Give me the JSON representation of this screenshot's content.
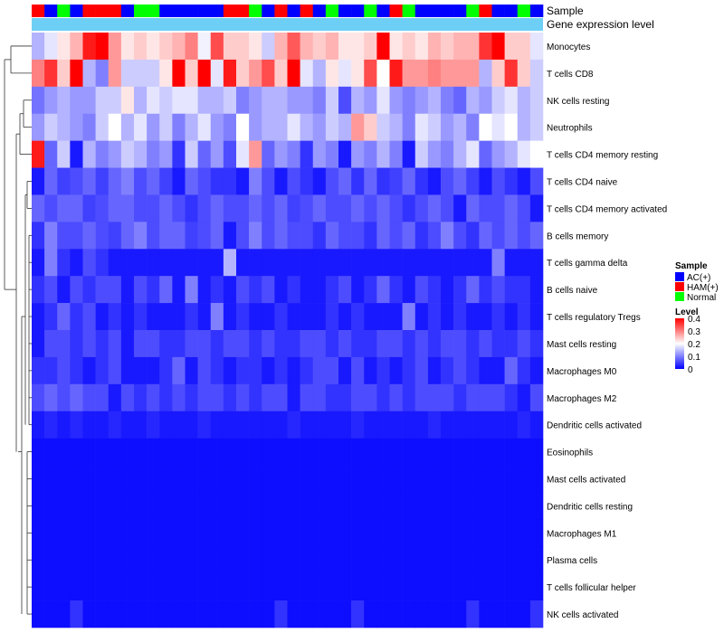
{
  "chart_data": {
    "type": "heatmap",
    "title": "",
    "annotation_tracks": [
      "Sample",
      "Gene expression level"
    ],
    "sample_annotation": [
      "HAM(+)",
      "AC(+)",
      "Normal",
      "AC(+)",
      "HAM(+)",
      "HAM(+)",
      "HAM(+)",
      "AC(+)",
      "Normal",
      "Normal",
      "AC(+)",
      "AC(+)",
      "AC(+)",
      "AC(+)",
      "AC(+)",
      "HAM(+)",
      "HAM(+)",
      "Normal",
      "AC(+)",
      "HAM(+)",
      "AC(+)",
      "HAM(+)",
      "AC(+)",
      "Normal",
      "AC(+)",
      "AC(+)",
      "Normal",
      "AC(+)",
      "HAM(+)",
      "Normal",
      "AC(+)",
      "AC(+)",
      "AC(+)",
      "AC(+)",
      "Normal",
      "HAM(+)",
      "AC(+)",
      "AC(+)",
      "Normal",
      "AC(+)"
    ],
    "rows": [
      "Monocytes",
      "T cells CD8",
      "NK cells resting",
      "Neutrophils",
      "T cells CD4 memory resting",
      "T cells CD4 naive",
      "T cells CD4 memory activated",
      "B cells memory",
      "T cells gamma delta",
      "B cells naive",
      "T cells regulatory  Tregs",
      "Mast cells resting",
      "Macrophages M0",
      "Macrophages M2",
      "Dendritic cells activated",
      "Eosinophils",
      "Mast cells activated",
      "Dendritic cells resting",
      "Macrophages M1",
      "Plasma cells",
      "T cells follicular helper",
      "NK cells activated"
    ],
    "values": [
      [
        0.14,
        0.18,
        0.22,
        0.26,
        0.38,
        0.4,
        0.28,
        0.22,
        0.24,
        0.22,
        0.24,
        0.26,
        0.3,
        0.19,
        0.34,
        0.24,
        0.24,
        0.22,
        0.16,
        0.26,
        0.33,
        0.26,
        0.24,
        0.26,
        0.22,
        0.22,
        0.24,
        0.4,
        0.22,
        0.24,
        0.22,
        0.26,
        0.24,
        0.26,
        0.26,
        0.36,
        0.4,
        0.24,
        0.24,
        0.18
      ],
      [
        0.3,
        0.36,
        0.24,
        0.4,
        0.14,
        0.1,
        0.28,
        0.16,
        0.16,
        0.16,
        0.22,
        0.4,
        0.24,
        0.4,
        0.18,
        0.38,
        0.24,
        0.28,
        0.34,
        0.24,
        0.4,
        0.18,
        0.14,
        0.22,
        0.18,
        0.22,
        0.34,
        0.2,
        0.38,
        0.28,
        0.28,
        0.3,
        0.28,
        0.28,
        0.28,
        0.14,
        0.24,
        0.36,
        0.24,
        0.16
      ],
      [
        0.09,
        0.12,
        0.14,
        0.12,
        0.12,
        0.16,
        0.16,
        0.22,
        0.14,
        0.18,
        0.16,
        0.18,
        0.18,
        0.14,
        0.14,
        0.16,
        0.1,
        0.12,
        0.14,
        0.14,
        0.12,
        0.12,
        0.1,
        0.16,
        0.06,
        0.14,
        0.12,
        0.18,
        0.12,
        0.1,
        0.12,
        0.14,
        0.1,
        0.08,
        0.14,
        0.12,
        0.16,
        0.18,
        0.14,
        0.16
      ],
      [
        0.12,
        0.16,
        0.14,
        0.12,
        0.1,
        0.16,
        0.2,
        0.14,
        0.18,
        0.12,
        0.16,
        0.1,
        0.14,
        0.18,
        0.12,
        0.1,
        0.2,
        0.12,
        0.14,
        0.14,
        0.18,
        0.14,
        0.12,
        0.16,
        0.14,
        0.28,
        0.24,
        0.16,
        0.14,
        0.1,
        0.18,
        0.16,
        0.12,
        0.14,
        0.1,
        0.2,
        0.18,
        0.2,
        0.14,
        0.16
      ],
      [
        0.38,
        0.08,
        0.16,
        0.02,
        0.14,
        0.1,
        0.12,
        0.16,
        0.14,
        0.1,
        0.12,
        0.04,
        0.16,
        0.08,
        0.12,
        0.06,
        0.18,
        0.28,
        0.08,
        0.12,
        0.1,
        0.04,
        0.12,
        0.1,
        0.02,
        0.12,
        0.1,
        0.14,
        0.1,
        0.02,
        0.16,
        0.12,
        0.1,
        0.14,
        0.18,
        0.08,
        0.12,
        0.14,
        0.18,
        0.2
      ],
      [
        0.02,
        0.08,
        0.05,
        0.06,
        0.08,
        0.05,
        0.08,
        0.1,
        0.06,
        0.08,
        0.05,
        0.02,
        0.08,
        0.06,
        0.04,
        0.04,
        0.02,
        0.1,
        0.06,
        0.02,
        0.06,
        0.04,
        0.02,
        0.06,
        0.08,
        0.04,
        0.08,
        0.04,
        0.05,
        0.08,
        0.04,
        0.02,
        0.06,
        0.08,
        0.05,
        0.02,
        0.06,
        0.04,
        0.02,
        0.06
      ],
      [
        0.08,
        0.06,
        0.08,
        0.08,
        0.05,
        0.06,
        0.08,
        0.08,
        0.06,
        0.06,
        0.08,
        0.06,
        0.04,
        0.06,
        0.08,
        0.06,
        0.06,
        0.08,
        0.06,
        0.08,
        0.05,
        0.06,
        0.08,
        0.06,
        0.06,
        0.08,
        0.06,
        0.08,
        0.06,
        0.04,
        0.06,
        0.08,
        0.06,
        0.02,
        0.08,
        0.06,
        0.06,
        0.08,
        0.06,
        0.02
      ],
      [
        0.04,
        0.1,
        0.06,
        0.06,
        0.08,
        0.06,
        0.05,
        0.08,
        0.1,
        0.06,
        0.08,
        0.08,
        0.05,
        0.06,
        0.08,
        0.02,
        0.06,
        0.1,
        0.06,
        0.08,
        0.06,
        0.06,
        0.04,
        0.08,
        0.06,
        0.06,
        0.04,
        0.08,
        0.06,
        0.08,
        0.04,
        0.06,
        0.1,
        0.06,
        0.04,
        0.08,
        0.06,
        0.08,
        0.06,
        0.08
      ],
      [
        0.02,
        0.1,
        0.04,
        0.02,
        0.06,
        0.04,
        0.02,
        0.02,
        0.02,
        0.02,
        0.02,
        0.02,
        0.02,
        0.02,
        0.02,
        0.14,
        0.02,
        0.02,
        0.02,
        0.02,
        0.02,
        0.02,
        0.02,
        0.02,
        0.02,
        0.02,
        0.02,
        0.02,
        0.02,
        0.02,
        0.02,
        0.02,
        0.02,
        0.02,
        0.02,
        0.02,
        0.1,
        0.02,
        0.02,
        0.02
      ],
      [
        0.04,
        0.06,
        0.02,
        0.06,
        0.04,
        0.06,
        0.06,
        0.02,
        0.06,
        0.04,
        0.08,
        0.02,
        0.1,
        0.02,
        0.04,
        0.02,
        0.06,
        0.04,
        0.06,
        0.02,
        0.04,
        0.02,
        0.02,
        0.04,
        0.06,
        0.02,
        0.04,
        0.08,
        0.04,
        0.02,
        0.06,
        0.04,
        0.02,
        0.04,
        0.08,
        0.04,
        0.06,
        0.04,
        0.04,
        0.02
      ],
      [
        0.02,
        0.04,
        0.08,
        0.04,
        0.06,
        0.02,
        0.04,
        0.02,
        0.04,
        0.02,
        0.02,
        0.02,
        0.04,
        0.02,
        0.1,
        0.02,
        0.04,
        0.02,
        0.02,
        0.04,
        0.02,
        0.02,
        0.02,
        0.04,
        0.02,
        0.04,
        0.02,
        0.02,
        0.02,
        0.1,
        0.02,
        0.04,
        0.02,
        0.04,
        0.02,
        0.02,
        0.04,
        0.02,
        0.04,
        0.02
      ],
      [
        0.02,
        0.06,
        0.06,
        0.04,
        0.06,
        0.04,
        0.06,
        0.02,
        0.06,
        0.06,
        0.04,
        0.04,
        0.06,
        0.06,
        0.04,
        0.06,
        0.06,
        0.04,
        0.06,
        0.04,
        0.04,
        0.06,
        0.06,
        0.04,
        0.06,
        0.04,
        0.04,
        0.06,
        0.06,
        0.04,
        0.06,
        0.04,
        0.06,
        0.06,
        0.04,
        0.06,
        0.04,
        0.04,
        0.06,
        0.04
      ],
      [
        0.04,
        0.04,
        0.06,
        0.04,
        0.02,
        0.04,
        0.06,
        0.02,
        0.02,
        0.02,
        0.04,
        0.08,
        0.02,
        0.06,
        0.04,
        0.02,
        0.04,
        0.04,
        0.02,
        0.04,
        0.02,
        0.04,
        0.06,
        0.06,
        0.02,
        0.06,
        0.02,
        0.04,
        0.02,
        0.04,
        0.06,
        0.02,
        0.04,
        0.06,
        0.04,
        0.02,
        0.02,
        0.08,
        0.04,
        0.02
      ],
      [
        0.06,
        0.08,
        0.06,
        0.08,
        0.06,
        0.06,
        0.02,
        0.06,
        0.04,
        0.06,
        0.04,
        0.06,
        0.04,
        0.06,
        0.06,
        0.04,
        0.06,
        0.04,
        0.06,
        0.06,
        0.02,
        0.06,
        0.06,
        0.04,
        0.04,
        0.06,
        0.06,
        0.04,
        0.06,
        0.04,
        0.06,
        0.06,
        0.06,
        0.04,
        0.06,
        0.06,
        0.06,
        0.04,
        0.02,
        0.06
      ],
      [
        0.02,
        0.03,
        0.02,
        0.03,
        0.02,
        0.02,
        0.03,
        0.02,
        0.02,
        0.03,
        0.02,
        0.02,
        0.02,
        0.03,
        0.02,
        0.02,
        0.02,
        0.02,
        0.02,
        0.02,
        0.03,
        0.02,
        0.02,
        0.02,
        0.02,
        0.03,
        0.02,
        0.02,
        0.02,
        0.02,
        0.02,
        0.03,
        0.02,
        0.02,
        0.02,
        0.02,
        0.02,
        0.02,
        0.03,
        0.02
      ],
      [
        0.01,
        0.01,
        0.01,
        0.01,
        0.01,
        0.01,
        0.01,
        0.01,
        0.01,
        0.01,
        0.01,
        0.01,
        0.01,
        0.01,
        0.01,
        0.01,
        0.01,
        0.01,
        0.01,
        0.01,
        0.01,
        0.01,
        0.01,
        0.01,
        0.01,
        0.01,
        0.01,
        0.01,
        0.01,
        0.01,
        0.01,
        0.01,
        0.01,
        0.01,
        0.01,
        0.01,
        0.01,
        0.01,
        0.01,
        0.01
      ],
      [
        0.01,
        0.01,
        0.01,
        0.01,
        0.01,
        0.01,
        0.01,
        0.01,
        0.01,
        0.01,
        0.01,
        0.01,
        0.01,
        0.01,
        0.01,
        0.01,
        0.01,
        0.01,
        0.01,
        0.01,
        0.01,
        0.01,
        0.01,
        0.01,
        0.01,
        0.01,
        0.01,
        0.01,
        0.01,
        0.01,
        0.01,
        0.01,
        0.01,
        0.01,
        0.01,
        0.01,
        0.01,
        0.01,
        0.01,
        0.01
      ],
      [
        0.01,
        0.01,
        0.01,
        0.01,
        0.01,
        0.01,
        0.01,
        0.01,
        0.01,
        0.01,
        0.01,
        0.01,
        0.01,
        0.01,
        0.01,
        0.01,
        0.01,
        0.01,
        0.01,
        0.01,
        0.01,
        0.01,
        0.01,
        0.01,
        0.01,
        0.01,
        0.01,
        0.01,
        0.01,
        0.01,
        0.01,
        0.01,
        0.01,
        0.01,
        0.01,
        0.01,
        0.01,
        0.01,
        0.01,
        0.01
      ],
      [
        0.01,
        0.01,
        0.01,
        0.01,
        0.01,
        0.01,
        0.01,
        0.01,
        0.01,
        0.01,
        0.01,
        0.01,
        0.01,
        0.01,
        0.01,
        0.01,
        0.01,
        0.01,
        0.01,
        0.01,
        0.01,
        0.01,
        0.01,
        0.01,
        0.01,
        0.01,
        0.01,
        0.01,
        0.01,
        0.01,
        0.01,
        0.01,
        0.01,
        0.01,
        0.01,
        0.01,
        0.01,
        0.01,
        0.01,
        0.01
      ],
      [
        0.01,
        0.01,
        0.01,
        0.01,
        0.01,
        0.01,
        0.01,
        0.01,
        0.01,
        0.01,
        0.01,
        0.01,
        0.01,
        0.01,
        0.01,
        0.01,
        0.01,
        0.01,
        0.01,
        0.01,
        0.01,
        0.01,
        0.01,
        0.01,
        0.01,
        0.01,
        0.01,
        0.01,
        0.01,
        0.01,
        0.01,
        0.01,
        0.01,
        0.01,
        0.01,
        0.01,
        0.01,
        0.01,
        0.01,
        0.01
      ],
      [
        0.01,
        0.01,
        0.01,
        0.01,
        0.01,
        0.01,
        0.01,
        0.01,
        0.01,
        0.01,
        0.01,
        0.01,
        0.01,
        0.01,
        0.01,
        0.01,
        0.01,
        0.01,
        0.01,
        0.01,
        0.01,
        0.01,
        0.01,
        0.01,
        0.01,
        0.01,
        0.01,
        0.01,
        0.01,
        0.01,
        0.01,
        0.01,
        0.01,
        0.01,
        0.01,
        0.01,
        0.01,
        0.01,
        0.01,
        0.01
      ],
      [
        0.01,
        0.01,
        0.01,
        0.04,
        0.01,
        0.01,
        0.01,
        0.01,
        0.01,
        0.01,
        0.01,
        0.01,
        0.01,
        0.01,
        0.01,
        0.01,
        0.01,
        0.01,
        0.01,
        0.04,
        0.01,
        0.01,
        0.01,
        0.01,
        0.01,
        0.04,
        0.01,
        0.01,
        0.01,
        0.01,
        0.01,
        0.01,
        0.01,
        0.01,
        0.04,
        0.01,
        0.01,
        0.01,
        0.01,
        0.04
      ]
    ],
    "color_scale": {
      "min": 0,
      "mid": 0.2,
      "max": 0.4,
      "low_color": "#0000ff",
      "mid_color": "#ffffff",
      "high_color": "#ff0000"
    },
    "legend": {
      "sample_title": "Sample",
      "sample_entries": [
        {
          "label": "AC(+)",
          "color": "#0000ff"
        },
        {
          "label": "HAM(+)",
          "color": "#ff0000"
        },
        {
          "label": "Normal",
          "color": "#00ff00"
        }
      ],
      "level_title": "Level",
      "level_ticks": [
        "0.4",
        "0.3",
        "0.2",
        "0.1",
        "0"
      ],
      "level_values": [
        0.4,
        0.3,
        0.2,
        0.1,
        0
      ],
      "placement": "right"
    },
    "gene_expression_color": "#6ecff6"
  }
}
